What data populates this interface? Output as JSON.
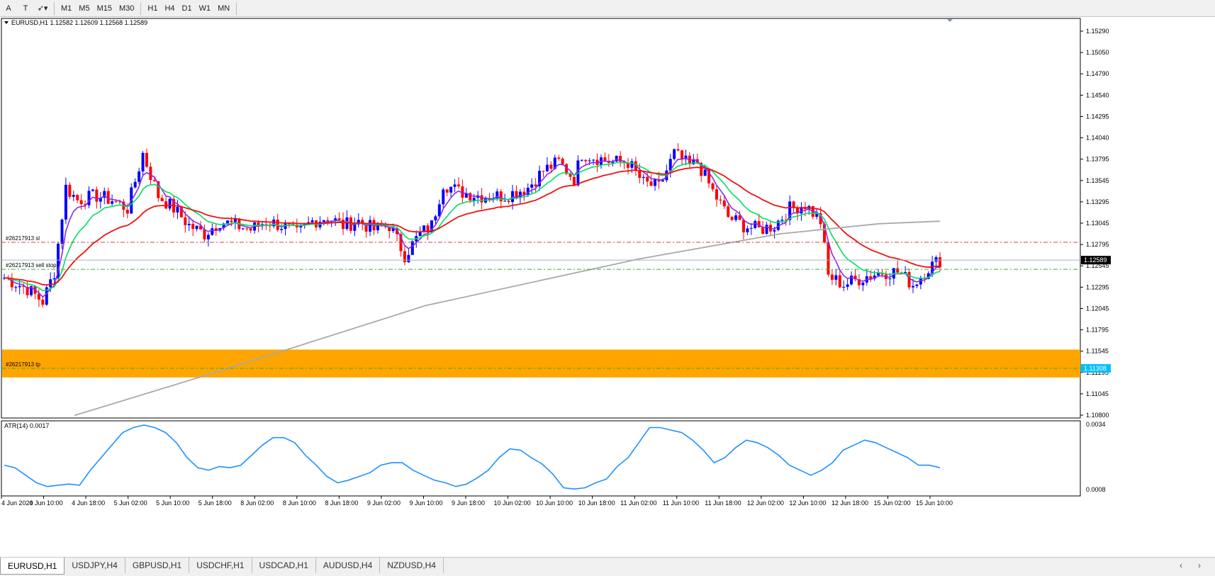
{
  "toolbar": {
    "tools": [
      {
        "name": "text-tool-button",
        "label": "A"
      },
      {
        "name": "text-label-tool-button",
        "label": "T"
      },
      {
        "name": "arrows-tool-button",
        "label": "➶▾"
      }
    ],
    "timeframes": [
      "M1",
      "M5",
      "M15",
      "M30",
      "H1",
      "H4",
      "D1",
      "W1",
      "MN"
    ]
  },
  "chart": {
    "symbol_header": "EURUSD,H1  1.12582 1.12609 1.12568 1.12589",
    "current_price_label": "1.12589",
    "tp_price_label": "1.11308",
    "colors": {
      "bull": "#0000ff",
      "bear": "#ff0000",
      "ma_fast": "#8a2be2",
      "ma_mid": "#00e060",
      "ma_slow": "#ee1111",
      "ma_long": "#a9a9a9",
      "atr": "#1e90ff",
      "zone": "#ffa500",
      "sl_line": "#d04040",
      "entry_line": "#30b030"
    },
    "order_labels": {
      "sl": "#26217913 sl",
      "entry": "#26217913 sell stop",
      "tp": "#26217913 tp"
    },
    "price_axis": [
      "1.15290",
      "1.15050",
      "1.14790",
      "1.14540",
      "1.14295",
      "1.14040",
      "1.13795",
      "1.13545",
      "1.13295",
      "1.13045",
      "1.12795",
      "1.12545",
      "1.12295",
      "1.12045",
      "1.11795",
      "1.11545",
      "1.11295",
      "1.11045",
      "1.10800"
    ],
    "time_axis": [
      "4 Jun 2020",
      "4 Jun 10:00",
      "4 Jun 18:00",
      "5 Jun 02:00",
      "5 Jun 10:00",
      "5 Jun 18:00",
      "8 Jun 02:00",
      "8 Jun 10:00",
      "8 Jun 18:00",
      "9 Jun 02:00",
      "9 Jun 10:00",
      "9 Jun 18:00",
      "10 Jun 02:00",
      "10 Jun 10:00",
      "10 Jun 18:00",
      "11 Jun 02:00",
      "11 Jun 10:00",
      "11 Jun 18:00",
      "12 Jun 02:00",
      "12 Jun 10:00",
      "12 Jun 18:00",
      "15 Jun 02:00",
      "15 Jun 10:00"
    ],
    "levels": {
      "sl": 1.128,
      "entry": 1.1248,
      "current": 1.12589,
      "tp": 1.11308,
      "zone_top": 1.1153,
      "zone_bottom": 1.112
    }
  },
  "atr": {
    "label": "ATR(14) 0.0017",
    "axis_top": "0.0034",
    "axis_bottom": "0.0008",
    "values": [
      0.0018,
      0.0017,
      0.0014,
      0.0011,
      0.00095,
      0.001,
      0.00105,
      0.001,
      0.0016,
      0.0021,
      0.0026,
      0.0031,
      0.0033,
      0.0034,
      0.0033,
      0.0031,
      0.0027,
      0.0021,
      0.0017,
      0.0016,
      0.00175,
      0.0017,
      0.0018,
      0.0022,
      0.0026,
      0.0029,
      0.0029,
      0.0027,
      0.0022,
      0.0018,
      0.00135,
      0.0011,
      0.0012,
      0.00135,
      0.0015,
      0.0018,
      0.0019,
      0.0019,
      0.0016,
      0.0014,
      0.0012,
      0.0011,
      0.00095,
      0.00105,
      0.0013,
      0.0016,
      0.0021,
      0.00245,
      0.0024,
      0.0021,
      0.00185,
      0.00145,
      0.0009,
      0.00085,
      0.0009,
      0.0011,
      0.00125,
      0.00175,
      0.0021,
      0.0027,
      0.0033,
      0.0033,
      0.0032,
      0.0031,
      0.0028,
      0.0024,
      0.0019,
      0.0021,
      0.0025,
      0.0028,
      0.0027,
      0.0025,
      0.0022,
      0.0018,
      0.0016,
      0.0014,
      0.0016,
      0.0019,
      0.0024,
      0.0026,
      0.0028,
      0.0027,
      0.0025,
      0.0023,
      0.0021,
      0.0018,
      0.0018,
      0.0017
    ]
  },
  "tabs": [
    {
      "label": "EURUSD,H1",
      "active": true
    },
    {
      "label": "USDJPY,H4",
      "active": false
    },
    {
      "label": "GBPUSD,H1",
      "active": false
    },
    {
      "label": "USDCHF,H1",
      "active": false
    },
    {
      "label": "USDCAD,H1",
      "active": false
    },
    {
      "label": "AUDUSD,H4",
      "active": false
    },
    {
      "label": "NZDUSD,H4",
      "active": false
    }
  ],
  "tab_nav": {
    "prev": "‹",
    "next": "›"
  }
}
